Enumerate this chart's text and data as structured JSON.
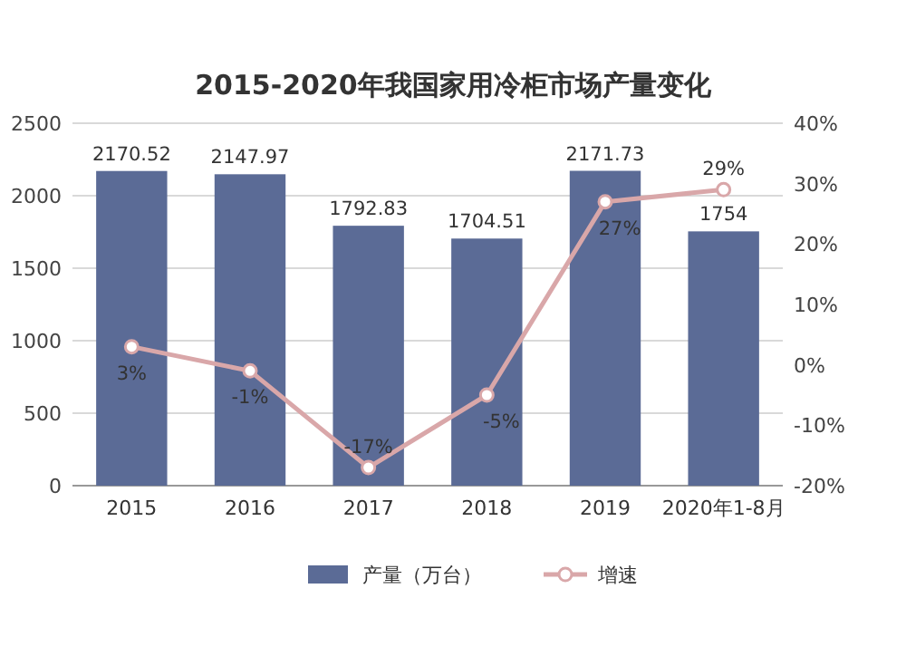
{
  "chart_data": {
    "type": "bar",
    "title": "2015-2020年我国家用冷柜市场产量变化",
    "categories": [
      "2015",
      "2016",
      "2017",
      "2018",
      "2019",
      "2020年1-8月"
    ],
    "series": [
      {
        "name": "产量（万台）",
        "color": "#5b6b96",
        "values": [
          2170.52,
          2147.97,
          1792.83,
          1704.51,
          2171.73,
          1754
        ]
      },
      {
        "name": "增速",
        "type": "line",
        "axis": "y2",
        "color": "#d9a7a9",
        "marker": "circle",
        "values": [
          3,
          -1,
          -17,
          -5,
          27,
          29
        ],
        "value_labels": [
          "3%",
          "-1%",
          "-17%",
          "-5%",
          "27%",
          "29%"
        ]
      }
    ],
    "ylim": [
      0,
      2500
    ],
    "yticks": [
      0,
      500,
      1000,
      1500,
      2000,
      2500
    ],
    "y2lim": [
      -20,
      40
    ],
    "y2ticks": [
      {
        "value": -20,
        "label": "-20%"
      },
      {
        "value": -10,
        "label": "-10%"
      },
      {
        "value": 0,
        "label": "0%"
      },
      {
        "value": 10,
        "label": "10%"
      },
      {
        "value": 20,
        "label": "20%"
      },
      {
        "value": 30,
        "label": "30%"
      },
      {
        "value": 40,
        "label": "40%"
      }
    ],
    "grid": "y",
    "legend": "bottom",
    "data_labels": true
  }
}
